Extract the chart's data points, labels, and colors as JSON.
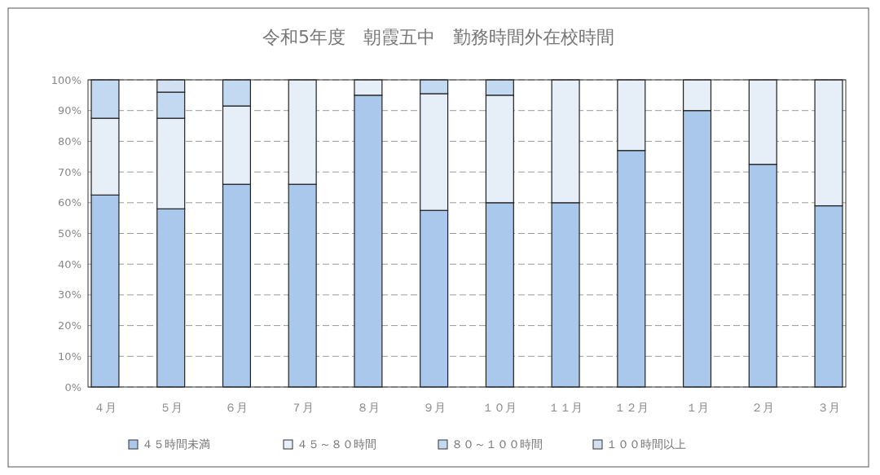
{
  "chart_data": {
    "type": "bar",
    "title": "令和5年度　朝霞五中　勤務時間外在校時間",
    "stacked": true,
    "categories": [
      "４月",
      "５月",
      "６月",
      "７月",
      "８月",
      "９月",
      "１０月",
      "１１月",
      "１２月",
      "１月",
      "２月",
      "３月"
    ],
    "series": [
      {
        "name": "４５時間未満",
        "color": "#a9c8ec",
        "values": [
          62.5,
          58,
          66,
          66,
          95,
          57.5,
          60,
          60,
          77,
          90,
          72.5,
          59
        ]
      },
      {
        "name": "４５～８０時間",
        "color": "#e6eef8",
        "values": [
          25,
          29.5,
          25.5,
          34,
          5,
          38,
          35,
          40,
          23,
          10,
          27.5,
          41
        ]
      },
      {
        "name": "８０～１００時間",
        "color": "#c3d9f2",
        "values": [
          12.5,
          8.5,
          8.5,
          0,
          0,
          4.5,
          5,
          0,
          0,
          0,
          0,
          0
        ]
      },
      {
        "name": "１００時間以上",
        "color": "#d2e0f2",
        "values": [
          0,
          4,
          0,
          0,
          0,
          0,
          0,
          0,
          0,
          0,
          0,
          0
        ]
      }
    ],
    "ylim": [
      0,
      100
    ],
    "yticks": [
      {
        "value": 0,
        "label": "0%"
      },
      {
        "value": 10,
        "label": "10%"
      },
      {
        "value": 20,
        "label": "20%"
      },
      {
        "value": 30,
        "label": "30%"
      },
      {
        "value": 40,
        "label": "40%"
      },
      {
        "value": 50,
        "label": "50%"
      },
      {
        "value": 60,
        "label": "60%"
      },
      {
        "value": 70,
        "label": "70%"
      },
      {
        "value": 80,
        "label": "80%"
      },
      {
        "value": 90,
        "label": "90%"
      },
      {
        "value": 100,
        "label": "100%"
      }
    ],
    "grid": "y",
    "legend": "bottom"
  }
}
